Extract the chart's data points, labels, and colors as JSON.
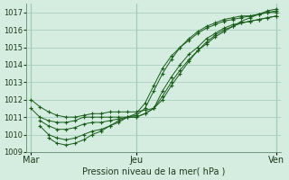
{
  "title": "",
  "xlabel": "Pression niveau de la mer( hPa )",
  "ylabel": "",
  "bg_color": "#d4ede0",
  "grid_color": "#a8cfc0",
  "line_color": "#1a5c1a",
  "marker_color": "#1a5c1a",
  "xtick_labels": [
    "Mar",
    "Jeu",
    "Ven"
  ],
  "xtick_positions": [
    0,
    12,
    28
  ],
  "ylim": [
    1009,
    1017.5
  ],
  "yticks": [
    1009,
    1010,
    1011,
    1012,
    1013,
    1014,
    1015,
    1016,
    1017
  ],
  "series": [
    {
      "x": [
        0,
        1,
        2,
        3,
        4,
        5,
        6,
        7,
        8,
        9,
        10,
        11,
        12,
        13,
        14,
        15,
        16,
        17,
        18,
        19,
        20,
        21,
        22,
        23,
        24,
        25,
        26,
        27,
        28
      ],
      "y": [
        1012.0,
        1011.6,
        1011.3,
        1011.1,
        1011.0,
        1011.0,
        1011.1,
        1011.2,
        1011.2,
        1011.3,
        1011.3,
        1011.3,
        1011.3,
        1011.4,
        1011.5,
        1012.0,
        1012.8,
        1013.5,
        1014.2,
        1014.8,
        1015.2,
        1015.6,
        1015.9,
        1016.2,
        1016.5,
        1016.7,
        1016.9,
        1017.1,
        1017.2
      ]
    },
    {
      "x": [
        0,
        1,
        2,
        3,
        4,
        5,
        6,
        7,
        8,
        9,
        10,
        11,
        12,
        13,
        14,
        15,
        16,
        17,
        18,
        19,
        20,
        21,
        22,
        23,
        24,
        25,
        26,
        27,
        28
      ],
      "y": [
        1011.5,
        1011.0,
        1010.8,
        1010.7,
        1010.7,
        1010.8,
        1011.0,
        1011.0,
        1011.0,
        1011.0,
        1011.0,
        1011.0,
        1011.0,
        1011.2,
        1011.5,
        1012.2,
        1013.0,
        1013.7,
        1014.3,
        1014.8,
        1015.3,
        1015.7,
        1016.0,
        1016.2,
        1016.4,
        1016.5,
        1016.6,
        1016.7,
        1016.8
      ]
    },
    {
      "x": [
        1,
        2,
        3,
        4,
        5,
        6,
        7,
        8,
        9,
        10,
        11,
        12,
        13,
        14,
        15,
        16,
        17,
        18,
        19,
        20,
        21,
        22,
        23,
        24,
        25,
        26,
        27,
        28
      ],
      "y": [
        1010.8,
        1010.5,
        1010.3,
        1010.3,
        1010.4,
        1010.6,
        1010.7,
        1010.7,
        1010.8,
        1010.9,
        1011.0,
        1011.0,
        1011.2,
        1011.5,
        1012.5,
        1013.3,
        1014.0,
        1014.6,
        1015.0,
        1015.5,
        1015.8,
        1016.1,
        1016.3,
        1016.4,
        1016.5,
        1016.6,
        1016.7,
        1016.8
      ]
    },
    {
      "x": [
        1,
        2,
        3,
        4,
        5,
        6,
        7,
        8,
        9,
        10,
        11,
        12,
        13,
        14,
        15,
        16,
        17,
        18,
        19,
        20,
        21,
        22,
        23,
        24,
        25,
        26,
        27,
        28
      ],
      "y": [
        1010.5,
        1010.0,
        1009.8,
        1009.7,
        1009.8,
        1010.0,
        1010.2,
        1010.3,
        1010.5,
        1010.7,
        1011.0,
        1011.1,
        1011.5,
        1012.5,
        1013.5,
        1014.3,
        1015.0,
        1015.5,
        1015.9,
        1016.2,
        1016.4,
        1016.6,
        1016.7,
        1016.8,
        1016.8,
        1016.9,
        1017.0,
        1017.0
      ]
    },
    {
      "x": [
        2,
        3,
        4,
        5,
        6,
        7,
        8,
        9,
        10,
        11,
        12,
        13,
        14,
        15,
        16,
        17,
        18,
        19,
        20,
        21,
        22,
        23,
        24,
        25,
        26,
        27,
        28
      ],
      "y": [
        1009.8,
        1009.5,
        1009.4,
        1009.5,
        1009.7,
        1010.0,
        1010.2,
        1010.5,
        1010.8,
        1011.0,
        1011.2,
        1011.8,
        1012.8,
        1013.8,
        1014.5,
        1015.0,
        1015.4,
        1015.8,
        1016.1,
        1016.3,
        1016.5,
        1016.6,
        1016.7,
        1016.8,
        1016.9,
        1017.0,
        1017.1
      ]
    }
  ]
}
